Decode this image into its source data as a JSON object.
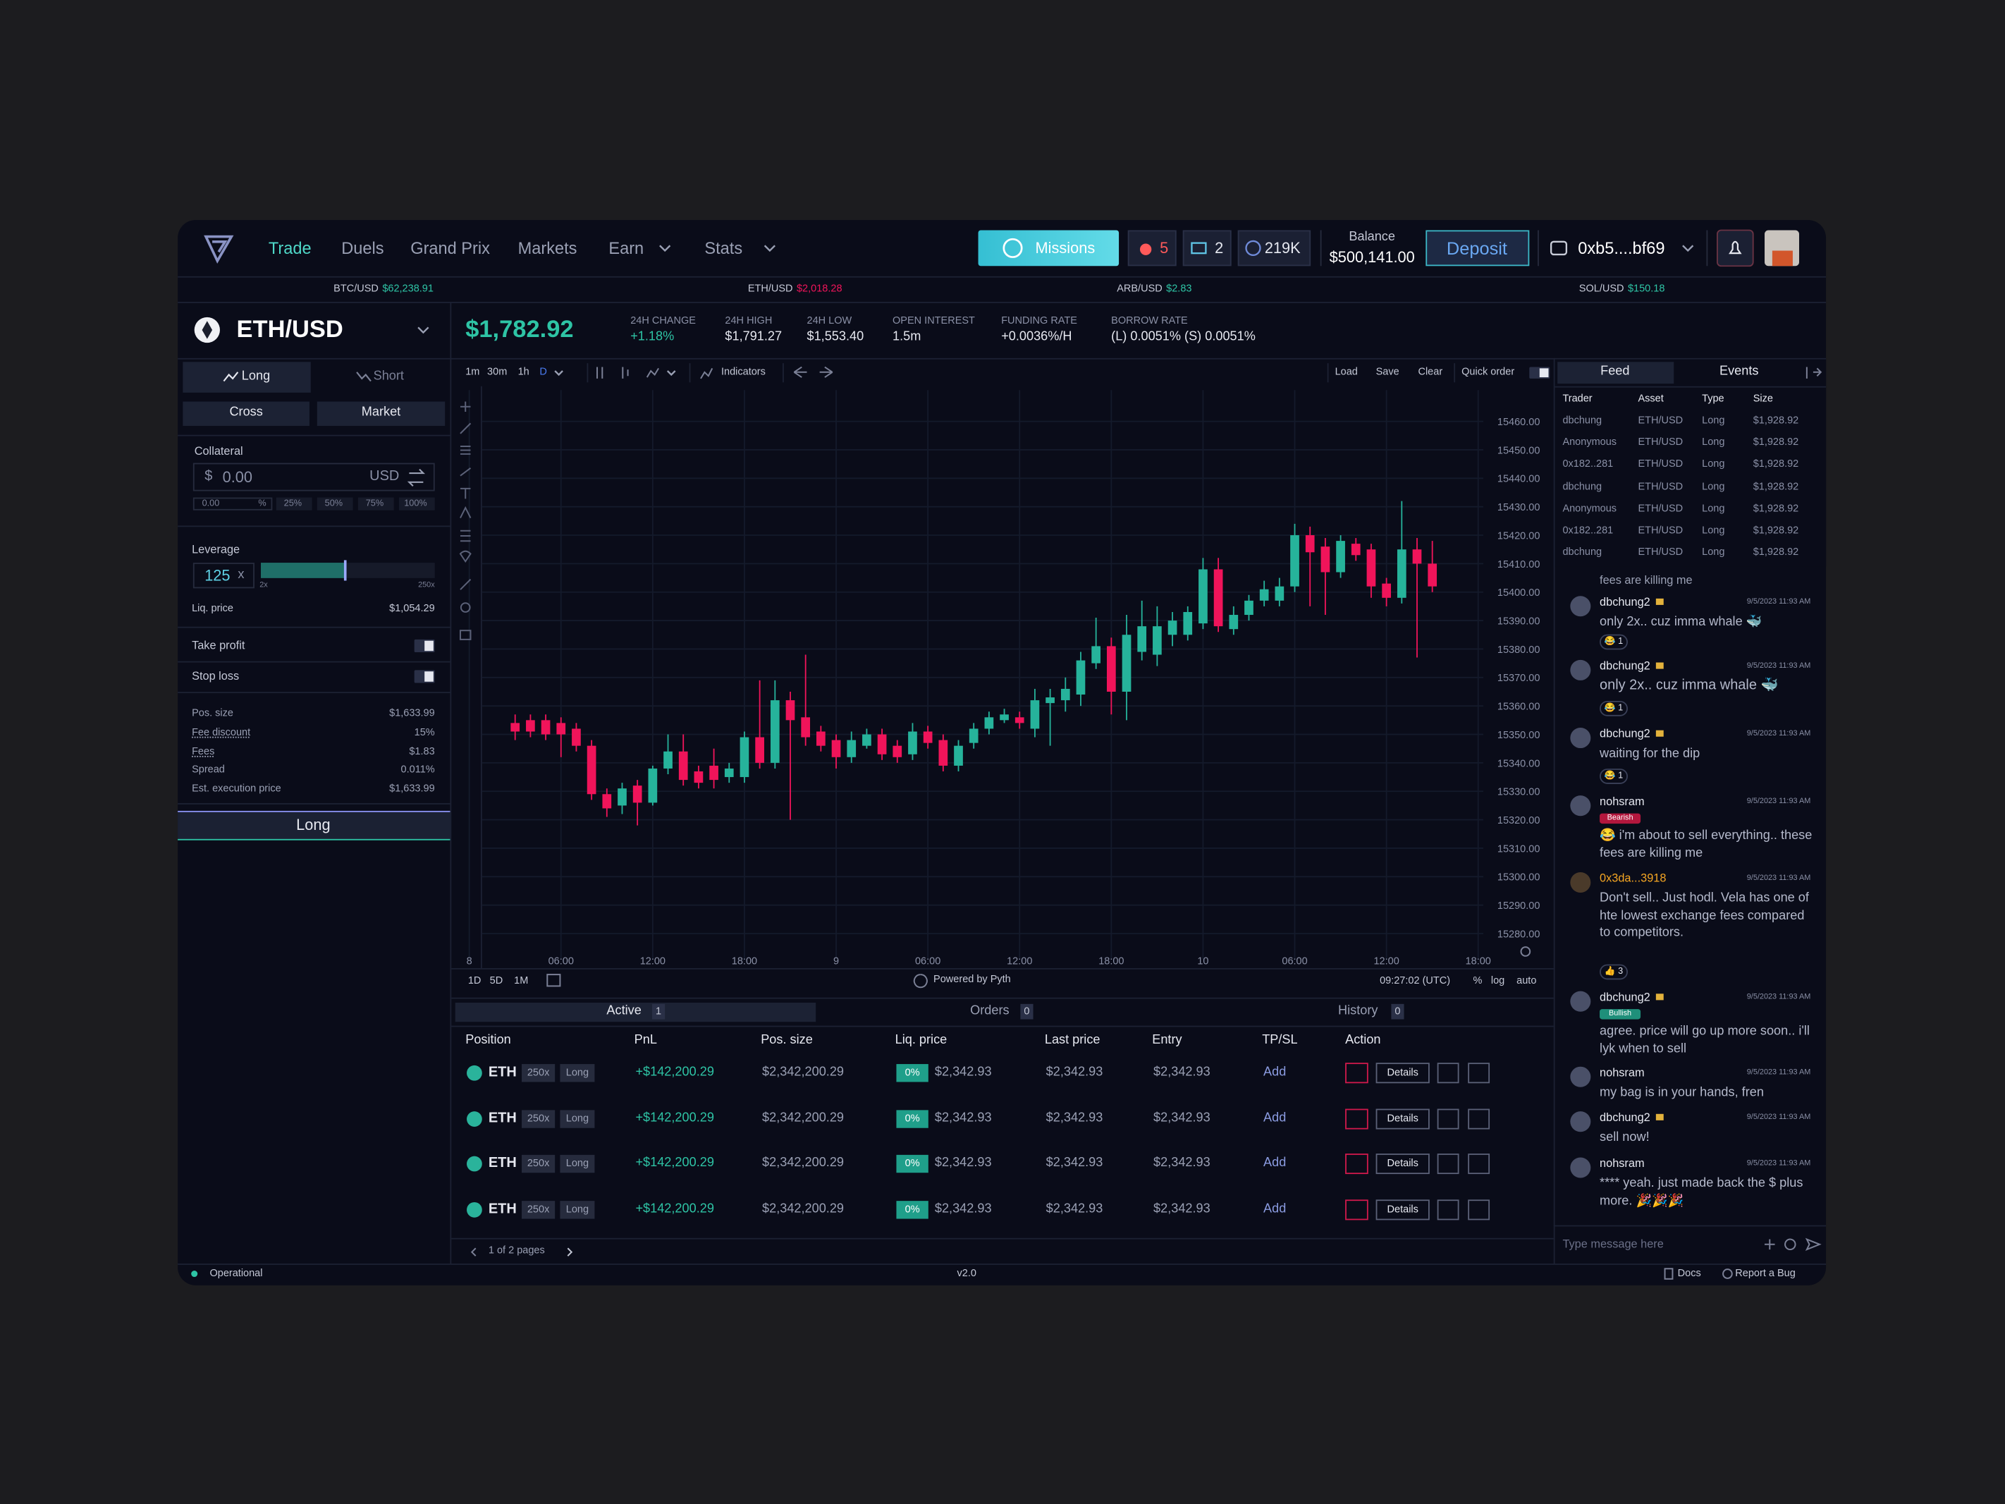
{
  "nav": {
    "links": [
      "Trade",
      "Duels",
      "Grand Prix",
      "Markets",
      "Earn",
      "Stats"
    ],
    "missions": "Missions",
    "fire": "5",
    "tickets": "2",
    "points": "219K",
    "balance_label": "Balance",
    "balance": "$500,141.00",
    "deposit": "Deposit",
    "wallet": "0xb5....bf69"
  },
  "ticker": [
    {
      "pair": "BTC/USD",
      "price": "$62,238.91"
    },
    {
      "pair": "ETH/USD",
      "price": "$2,018.28"
    },
    {
      "pair": "ARB/USD",
      "price": "$2.83"
    },
    {
      "pair": "SOL/USD",
      "price": "$150.18"
    }
  ],
  "market": {
    "pair": "ETH/USD",
    "price": "$1,782.92",
    "stats": [
      {
        "label": "24H CHANGE",
        "value": "+1.18%"
      },
      {
        "label": "24H HIGH",
        "value": "$1,791.27"
      },
      {
        "label": "24H LOW",
        "value": "$1,553.40"
      },
      {
        "label": "OPEN INTEREST",
        "value": "1.5m"
      },
      {
        "label": "FUNDING RATE",
        "value": "+0.0036%/H"
      },
      {
        "label": "BORROW RATE",
        "value": "(L) 0.0051% (S) 0.0051%"
      }
    ]
  },
  "order": {
    "tabs": [
      "Long",
      "Short"
    ],
    "modes": [
      "Cross",
      "Market"
    ],
    "collateral_label": "Collateral",
    "currency_symbol": "$",
    "amount": "0.00",
    "currency": "USD",
    "percent": [
      "0.00",
      "%",
      "25%",
      "50%",
      "75%",
      "100%"
    ],
    "leverage_label": "Leverage",
    "leverage": "125",
    "leverage_unit": "x",
    "leverage_min": "2x",
    "leverage_max": "250x",
    "liq_label": "Liq. price",
    "liq_value": "$1,054.29",
    "toggles": [
      "Take profit",
      "Stop loss"
    ],
    "summary": [
      {
        "label": "Pos. size",
        "value": "$1,633.99"
      },
      {
        "label": "Fee discount",
        "value": "15%"
      },
      {
        "label": "Fees",
        "value": "$1.83"
      },
      {
        "label": "Spread",
        "value": "0.011%"
      },
      {
        "label": "Est. execution price",
        "value": "$1,633.99"
      }
    ],
    "submit": "Long"
  },
  "chart_toolbar": {
    "intervals": [
      "1m",
      "30m",
      "1h",
      "D"
    ],
    "indicators": "Indicators",
    "actions": [
      "Load",
      "Save",
      "Clear"
    ],
    "quick_order": "Quick order"
  },
  "chart_data": {
    "type": "candlestick",
    "x": [
      3,
      4,
      5,
      6,
      7,
      8,
      9,
      10,
      11,
      12,
      13,
      14,
      15,
      16,
      17,
      18,
      19,
      20,
      21,
      22,
      23,
      24,
      25,
      26,
      27,
      28,
      29,
      30,
      31,
      32,
      33,
      34,
      35,
      36,
      37,
      38,
      39,
      40,
      41,
      42,
      43,
      44,
      45,
      46,
      47,
      48,
      49,
      50,
      51,
      52,
      53,
      54,
      55,
      56,
      57,
      58,
      59,
      60,
      61,
      62,
      63
    ],
    "open": [
      15354,
      15355,
      15355,
      15354,
      15352,
      15346,
      15329,
      15325,
      15332,
      15326,
      15338,
      15344,
      15337,
      15339,
      15335,
      15335,
      15349,
      15340,
      15362,
      15356,
      15351,
      15348,
      15342,
      15346,
      15350,
      15346,
      15343,
      15351,
      15348,
      15339,
      15347,
      15352,
      15355,
      15356,
      15352,
      15361,
      15362,
      15364,
      15375,
      15381,
      15365,
      15379,
      15378,
      15385,
      15385,
      15389,
      15408,
      15387,
      15392,
      15397,
      15397,
      15402,
      15420,
      15416,
      15407,
      15417,
      15415,
      15403,
      15398,
      15415,
      15410
    ],
    "high": [
      15357,
      15357,
      15357,
      15356,
      15354,
      15348,
      15331,
      15333,
      15334,
      15339,
      15350,
      15350,
      15339,
      15345,
      15340,
      15351,
      15369,
      15369,
      15365,
      15378,
      15353,
      15350,
      15351,
      15352,
      15352,
      15348,
      15354,
      15353,
      15350,
      15348,
      15354,
      15358,
      15359,
      15358,
      15366,
      15366,
      15370,
      15379,
      15391,
      15384,
      15392,
      15397,
      15395,
      15393,
      15395,
      15412,
      15412,
      15395,
      15399,
      15404,
      15405,
      15424,
      15423,
      15419,
      15420,
      15419,
      15417,
      15405,
      15432,
      15419,
      15418
    ],
    "low": [
      15348,
      15349,
      15348,
      15342,
      15344,
      15327,
      15321,
      15322,
      15318,
      15325,
      15336,
      15332,
      15331,
      15331,
      15333,
      15333,
      15338,
      15338,
      15320,
      15346,
      15344,
      15338,
      15340,
      15345,
      15341,
      15340,
      15341,
      15345,
      15337,
      15337,
      15345,
      15350,
      15354,
      15352,
      15349,
      15346,
      15358,
      15360,
      15373,
      15357,
      15355,
      15376,
      15374,
      15381,
      15383,
      15387,
      15386,
      15385,
      15390,
      15395,
      15395,
      15400,
      15395,
      15392,
      15405,
      15411,
      15398,
      15395,
      15396,
      15377,
      15400
    ],
    "close": [
      15351,
      15351,
      15350,
      15350,
      15346,
      15329,
      15324,
      15331,
      15326,
      15338,
      15344,
      15334,
      15333,
      15334,
      15338,
      15349,
      15340,
      15362,
      15355,
      15349,
      15346,
      15342,
      15348,
      15350,
      15343,
      15342,
      15351,
      15347,
      15339,
      15346,
      15352,
      15356,
      15357,
      15354,
      15362,
      15363,
      15366,
      15376,
      15381,
      15365,
      15385,
      15388,
      15388,
      15390,
      15393,
      15408,
      15388,
      15392,
      15397,
      15401,
      15402,
      15420,
      15414,
      15407,
      15418,
      15413,
      15402,
      15398,
      15415,
      15410,
      15402
    ],
    "up_color": "#26b39b",
    "down_color": "#f0145a",
    "xlim": [
      0,
      66
    ],
    "xticks": [
      {
        "value": 0,
        "label": "8"
      },
      {
        "value": 6,
        "label": "06:00"
      },
      {
        "value": 12,
        "label": "12:00"
      },
      {
        "value": 18,
        "label": "18:00"
      },
      {
        "value": 24,
        "label": "9"
      },
      {
        "value": 30,
        "label": "06:00"
      },
      {
        "value": 36,
        "label": "12:00"
      },
      {
        "value": 42,
        "label": "18:00"
      },
      {
        "value": 48,
        "label": "10"
      },
      {
        "value": 54,
        "label": "06:00"
      },
      {
        "value": 60,
        "label": "12:00"
      },
      {
        "value": 66,
        "label": "18:00"
      }
    ],
    "ylim": [
      15271,
      15471
    ],
    "yticks": [
      {
        "value": 15280,
        "label": "15280.00"
      },
      {
        "value": 15290,
        "label": "15290.00"
      },
      {
        "value": 15300,
        "label": "15300.00"
      },
      {
        "value": 15310,
        "label": "15310.00"
      },
      {
        "value": 15320,
        "label": "15320.00"
      },
      {
        "value": 15330,
        "label": "15330.00"
      },
      {
        "value": 15340,
        "label": "15340.00"
      },
      {
        "value": 15350,
        "label": "15350.00"
      },
      {
        "value": 15360,
        "label": "15360.00"
      },
      {
        "value": 15370,
        "label": "15370.00"
      },
      {
        "value": 15380,
        "label": "15380.00"
      },
      {
        "value": 15390,
        "label": "15390.00"
      },
      {
        "value": 15400,
        "label": "15400.00"
      },
      {
        "value": 15410,
        "label": "15410.00"
      },
      {
        "value": 15420,
        "label": "15420.00"
      },
      {
        "value": 15430,
        "label": "15430.00"
      },
      {
        "value": 15440,
        "label": "15440.00"
      },
      {
        "value": 15450,
        "label": "15450.00"
      },
      {
        "value": 15460,
        "label": "15460.00"
      }
    ],
    "grid": true
  },
  "chart_footer": {
    "ranges": [
      "1D",
      "5D",
      "1M"
    ],
    "powered": "Powered by Pyth",
    "time": "09:27:02 (UTC)",
    "options": [
      "%",
      "log",
      "auto"
    ]
  },
  "positions": {
    "tabs": [
      {
        "label": "Active",
        "count": "1"
      },
      {
        "label": "Orders",
        "count": "0"
      },
      {
        "label": "History",
        "count": "0"
      }
    ],
    "columns": [
      "Position",
      "PnL",
      "Pos. size",
      "Liq. price",
      "Last price",
      "Entry",
      "TP/SL",
      "Action"
    ],
    "rows": [
      [
        "ETH",
        "250x",
        "Long",
        "+$142,200.29",
        "$2,342,200.29",
        "0%",
        "$2,342.93",
        "$2,342.93",
        "$2,342.93",
        "Add",
        "Details"
      ],
      [
        "ETH",
        "250x",
        "Long",
        "+$142,200.29",
        "$2,342,200.29",
        "0%",
        "$2,342.93",
        "$2,342.93",
        "$2,342.93",
        "Add",
        "Details"
      ],
      [
        "ETH",
        "250x",
        "Long",
        "+$142,200.29",
        "$2,342,200.29",
        "0%",
        "$2,342.93",
        "$2,342.93",
        "$2,342.93",
        "Add",
        "Details"
      ],
      [
        "ETH",
        "250x",
        "Long",
        "+$142,200.29",
        "$2,342,200.29",
        "0%",
        "$2,342.93",
        "$2,342.93",
        "$2,342.93",
        "Add",
        "Details"
      ]
    ],
    "pagination": "1 of 2 pages"
  },
  "feed": {
    "tabs": [
      "Feed",
      "Events"
    ],
    "columns": [
      "Trader",
      "Asset",
      "Type",
      "Size"
    ],
    "rows": [
      [
        "dbchung",
        "ETH/USD",
        "Long",
        "$1,928.92"
      ],
      [
        "Anonymous",
        "ETH/USD",
        "Long",
        "$1,928.92"
      ],
      [
        "0x182..281",
        "ETH/USD",
        "Long",
        "$1,928.92"
      ],
      [
        "dbchung",
        "ETH/USD",
        "Long",
        "$1,928.92"
      ],
      [
        "Anonymous",
        "ETH/USD",
        "Long",
        "$1,928.92"
      ],
      [
        "0x182..281",
        "ETH/USD",
        "Long",
        "$1,928.92"
      ],
      [
        "dbchung",
        "ETH/USD",
        "Long",
        "$1,928.92"
      ]
    ]
  },
  "chat": {
    "fragment": "fees are killing me",
    "messages": [
      {
        "user": "dbchung2",
        "time": "9/5/2023 11:93 AM",
        "text": "only 2x.. cuz imma whale 🐳",
        "reaction": "😂 1"
      },
      {
        "user": "dbchung2",
        "time": "9/5/2023 11:93 AM",
        "text": "only 2x.. cuz imma whale 🐳",
        "reaction": "😂 1"
      },
      {
        "user": "dbchung2",
        "time": "9/5/2023 11:93 AM",
        "text": "waiting for the dip",
        "reaction": "😂 1"
      },
      {
        "user": "nohsram",
        "badge": "Bearish",
        "time": "9/5/2023 11:93 AM",
        "text": "😂 i'm about to sell everything.. these fees are killing me"
      },
      {
        "user": "0x3da...3918",
        "time": "9/5/2023 11:93 AM",
        "text": "Don't sell.. Just hodl. Vela has one of hte lowest exchange fees compared to competitors.",
        "reaction": "👍 3"
      },
      {
        "user": "dbchung2",
        "badge": "Bullish",
        "time": "9/5/2023 11:93 AM",
        "text": "agree. price will go up more soon.. i'll lyk when to sell"
      },
      {
        "user": "nohsram",
        "time": "9/5/2023 11:93 AM",
        "text": "my bag is in your hands, fren"
      },
      {
        "user": "dbchung2",
        "time": "9/5/2023 11:93 AM",
        "text": "sell now!"
      },
      {
        "user": "nohsram",
        "time": "9/5/2023 11:93 AM",
        "text": "**** yeah. just made back the $ plus more. 🎉🎉🎉"
      }
    ],
    "placeholder": "Type message here"
  },
  "footer": {
    "status": "Operational",
    "version": "v2.0",
    "links": [
      "Docs",
      "Report a Bug"
    ]
  }
}
